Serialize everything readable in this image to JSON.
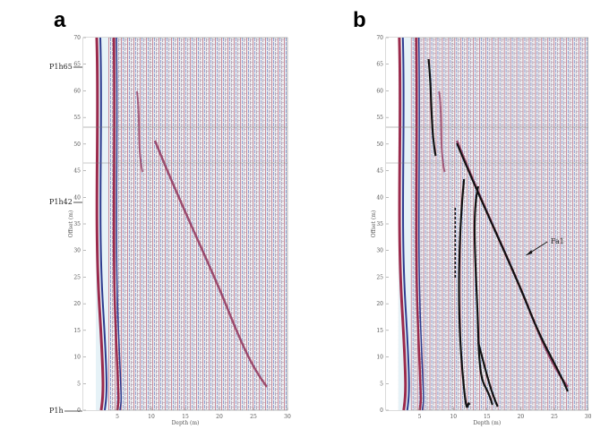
{
  "panels": [
    {
      "label": "a",
      "x_label": "Depth (m)",
      "y_label": "Offset (m)",
      "x_ticks": [
        5,
        10,
        15,
        20,
        25,
        30
      ],
      "y_ticks": [
        0,
        5,
        10,
        15,
        20,
        25,
        30,
        35,
        40,
        45,
        50,
        55,
        60,
        65,
        70
      ],
      "annotations": [
        "P1h65",
        "P1h42",
        "P1h"
      ]
    },
    {
      "label": "b",
      "x_label": "Depth (m)",
      "y_label": "Offset (m)",
      "x_ticks": [
        5,
        10,
        15,
        20,
        25,
        30
      ],
      "y_ticks": [
        0,
        5,
        10,
        15,
        20,
        25,
        30,
        35,
        40,
        45,
        50,
        55,
        60,
        65,
        70
      ],
      "annotations": [
        "Fa1"
      ]
    }
  ]
}
